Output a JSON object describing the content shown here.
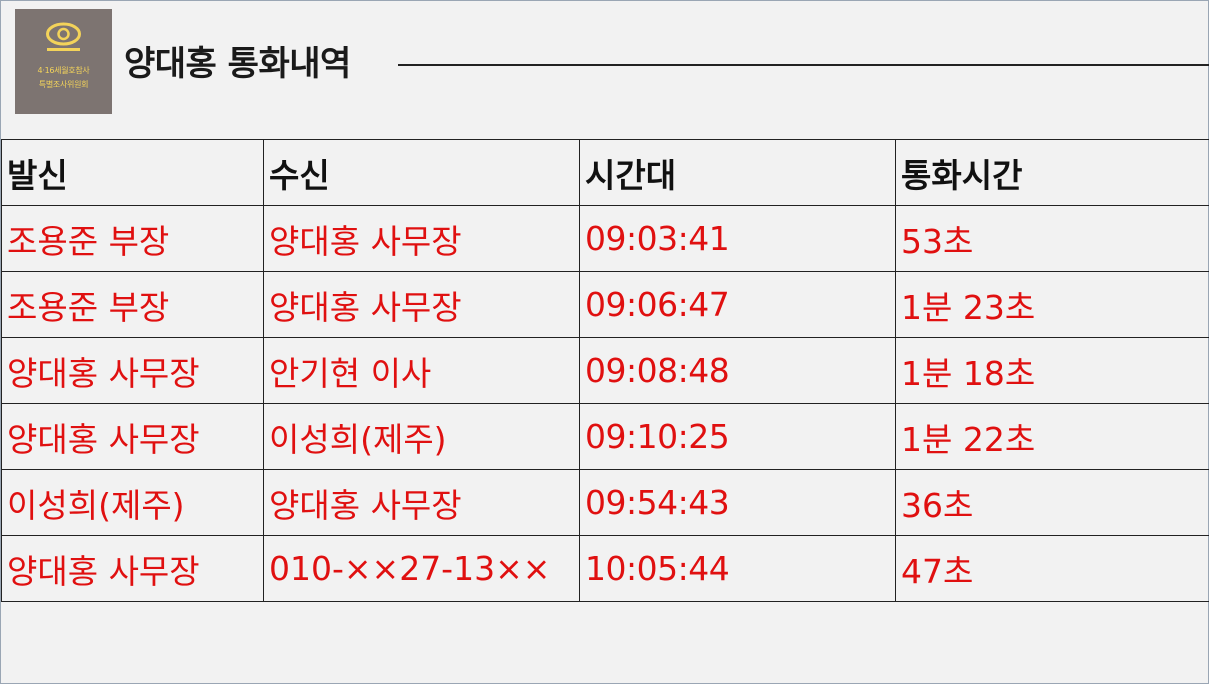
{
  "logo": {
    "line1": "4·16세월호참사",
    "line2": "특별조사위원회"
  },
  "title": "양대홍 통화내역",
  "table": {
    "headers": [
      "발신",
      "수신",
      "시간대",
      "통화시간"
    ],
    "rows": [
      [
        "조용준 부장",
        "양대홍 사무장",
        "09:03:41",
        "53초"
      ],
      [
        "조용준 부장",
        "양대홍 사무장",
        "09:06:47",
        "1분 23초"
      ],
      [
        "양대홍 사무장",
        "안기현 이사",
        "09:08:48",
        "1분 18초"
      ],
      [
        "양대홍 사무장",
        "이성희(제주)",
        "09:10:25",
        "1분 22초"
      ],
      [
        "이성희(제주)",
        "양대홍 사무장",
        "09:54:43",
        "36초"
      ],
      [
        "양대홍 사무장",
        "010-××27-13××",
        "10:05:44",
        "47초"
      ]
    ]
  },
  "colors": {
    "cell_text": "#e01010",
    "header_text": "#111111",
    "logo_bg": "#7d7471",
    "logo_accent": "#f3d35a"
  }
}
